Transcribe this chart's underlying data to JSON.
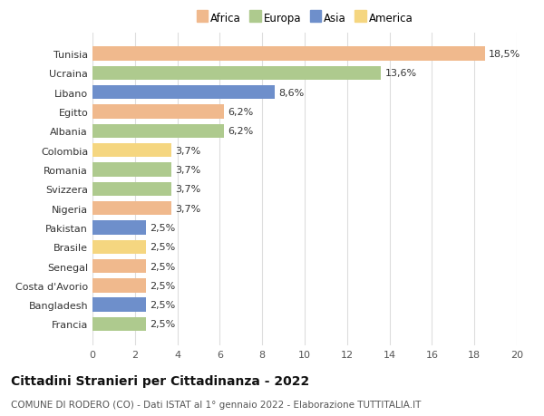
{
  "countries": [
    "Tunisia",
    "Ucraina",
    "Libano",
    "Egitto",
    "Albania",
    "Colombia",
    "Romania",
    "Svizzera",
    "Nigeria",
    "Pakistan",
    "Brasile",
    "Senegal",
    "Costa d'Avorio",
    "Bangladesh",
    "Francia"
  ],
  "values": [
    18.5,
    13.6,
    8.6,
    6.2,
    6.2,
    3.7,
    3.7,
    3.7,
    3.7,
    2.5,
    2.5,
    2.5,
    2.5,
    2.5,
    2.5
  ],
  "labels": [
    "18,5%",
    "13,6%",
    "8,6%",
    "6,2%",
    "6,2%",
    "3,7%",
    "3,7%",
    "3,7%",
    "3,7%",
    "2,5%",
    "2,5%",
    "2,5%",
    "2,5%",
    "2,5%",
    "2,5%"
  ],
  "continents": [
    "Africa",
    "Europa",
    "Asia",
    "Africa",
    "Europa",
    "America",
    "Europa",
    "Europa",
    "Africa",
    "Asia",
    "America",
    "Africa",
    "Africa",
    "Asia",
    "Europa"
  ],
  "continent_colors": {
    "Africa": "#F0B98D",
    "Europa": "#AECA8E",
    "Asia": "#6E8FCB",
    "America": "#F5D680"
  },
  "legend_order": [
    "Africa",
    "Europa",
    "Asia",
    "America"
  ],
  "xlim": [
    0,
    20
  ],
  "xticks": [
    0,
    2,
    4,
    6,
    8,
    10,
    12,
    14,
    16,
    18,
    20
  ],
  "title": "Cittadini Stranieri per Cittadinanza - 2022",
  "subtitle": "COMUNE DI RODERO (CO) - Dati ISTAT al 1° gennaio 2022 - Elaborazione TUTTITALIA.IT",
  "title_fontsize": 10,
  "subtitle_fontsize": 7.5,
  "label_fontsize": 8,
  "tick_fontsize": 8,
  "legend_fontsize": 8.5,
  "background_color": "#ffffff",
  "grid_color": "#dddddd"
}
